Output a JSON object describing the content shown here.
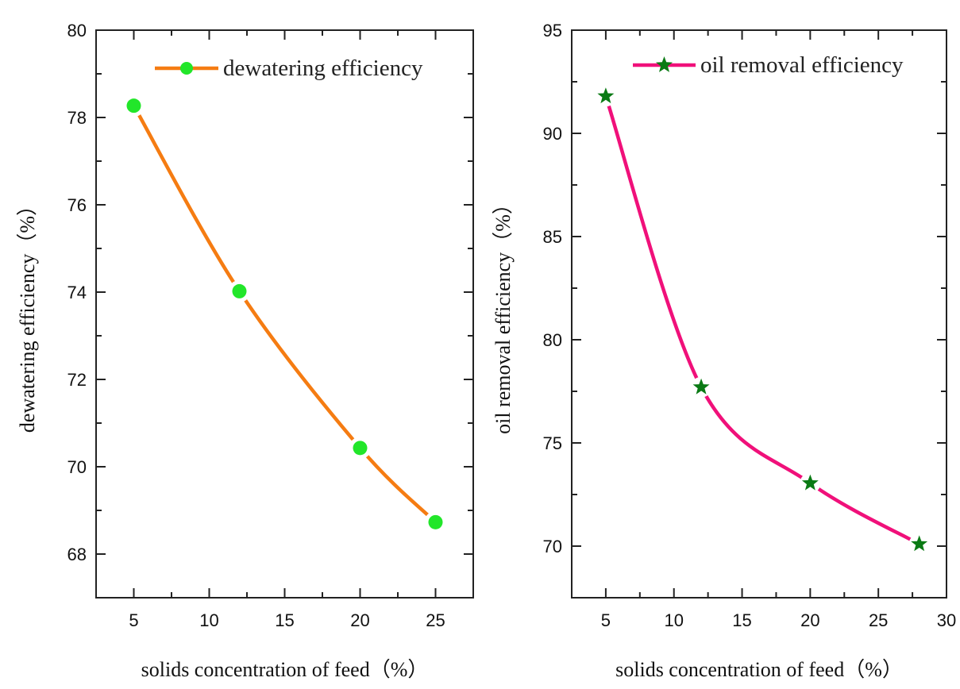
{
  "chart_data": [
    {
      "type": "line",
      "xlabel": "solids concentration of feed（%）",
      "ylabel": "dewatering efficiency（%）",
      "xlim": [
        2.5,
        27.5
      ],
      "ylim": [
        67,
        80
      ],
      "xticks": [
        5,
        10,
        15,
        20,
        25
      ],
      "yticks": [
        68,
        70,
        72,
        74,
        76,
        78,
        80
      ],
      "grid": false,
      "legend_position": "top-right",
      "series": [
        {
          "name": "dewatering efficiency",
          "x": [
            5,
            12,
            20,
            25
          ],
          "y": [
            78.27,
            74.02,
            70.43,
            68.73
          ],
          "line_color": "#f57c12",
          "marker": "circle",
          "marker_color": "#22e62a"
        }
      ]
    },
    {
      "type": "line",
      "xlabel": "solids concentration of feed（%）",
      "ylabel": "oil removal efficiency（%）",
      "xlim": [
        2.5,
        30
      ],
      "ylim": [
        67.5,
        95
      ],
      "xticks": [
        5,
        10,
        15,
        20,
        25,
        30
      ],
      "yticks": [
        70,
        75,
        80,
        85,
        90,
        95
      ],
      "grid": false,
      "legend_position": "top-right",
      "series": [
        {
          "name": "oil removal efficiency",
          "x": [
            5,
            12,
            20,
            28
          ],
          "y": [
            91.8,
            77.7,
            73.05,
            70.1
          ],
          "line_color": "#f0107a",
          "marker": "star",
          "marker_color": "#0a7a14"
        }
      ]
    }
  ]
}
